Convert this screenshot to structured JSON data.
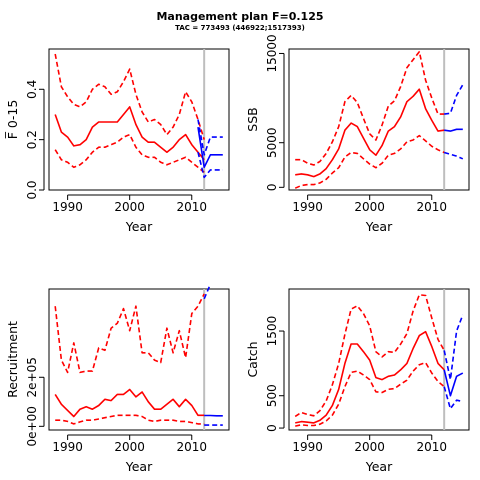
{
  "title": "Management plan F=0.125",
  "subtitle": "TAC = 773493 (446922;1517393)",
  "colors": {
    "historic": "#ff0000",
    "projection": "#0000ff",
    "current_year_line": "#bebebe",
    "axis": "#000000"
  },
  "chart_data": [
    {
      "type": "line",
      "panel": "top-left",
      "ylabel": "F̅ 0-15",
      "xlabel": "Year",
      "xlim": [
        1987,
        2016
      ],
      "ylim": [
        0,
        0.56
      ],
      "x_ticks": [
        1990,
        2000,
        2010
      ],
      "y_ticks": [
        0.0,
        0.2,
        0.4
      ],
      "y_tick_labels": [
        "0.0",
        "0.2",
        "0.4"
      ],
      "current_year": 2012,
      "series": [
        {
          "kind": "estimate",
          "style": "solid",
          "color": "#ff0000",
          "x": [
            1988,
            1989,
            1990,
            1991,
            1992,
            1993,
            1994,
            1995,
            1996,
            1997,
            1998,
            1999,
            2000,
            2001,
            2002,
            2003,
            2004,
            2005,
            2006,
            2007,
            2008,
            2009,
            2010,
            2011,
            2012
          ],
          "y": [
            0.3,
            0.23,
            0.21,
            0.175,
            0.18,
            0.2,
            0.25,
            0.27,
            0.27,
            0.27,
            0.27,
            0.3,
            0.33,
            0.26,
            0.21,
            0.19,
            0.19,
            0.17,
            0.15,
            0.17,
            0.2,
            0.22,
            0.18,
            0.15,
            0.12
          ]
        },
        {
          "kind": "upper",
          "style": "dashed",
          "color": "#ff0000",
          "x": [
            1988,
            1989,
            1990,
            1991,
            1992,
            1993,
            1994,
            1995,
            1996,
            1997,
            1998,
            1999,
            2000,
            2001,
            2002,
            2003,
            2004,
            2005,
            2006,
            2007,
            2008,
            2009,
            2010,
            2011,
            2012
          ],
          "y": [
            0.54,
            0.41,
            0.37,
            0.34,
            0.33,
            0.35,
            0.4,
            0.42,
            0.41,
            0.38,
            0.39,
            0.43,
            0.48,
            0.38,
            0.31,
            0.27,
            0.28,
            0.26,
            0.22,
            0.25,
            0.3,
            0.39,
            0.35,
            0.28,
            0.2
          ]
        },
        {
          "kind": "lower",
          "style": "dashed",
          "color": "#ff0000",
          "x": [
            1988,
            1989,
            1990,
            1991,
            1992,
            1993,
            1994,
            1995,
            1996,
            1997,
            1998,
            1999,
            2000,
            2001,
            2002,
            2003,
            2004,
            2005,
            2006,
            2007,
            2008,
            2009,
            2010,
            2011,
            2012
          ],
          "y": [
            0.16,
            0.12,
            0.11,
            0.09,
            0.1,
            0.12,
            0.15,
            0.17,
            0.17,
            0.18,
            0.19,
            0.21,
            0.22,
            0.17,
            0.14,
            0.13,
            0.13,
            0.11,
            0.1,
            0.11,
            0.12,
            0.13,
            0.11,
            0.09,
            0.07
          ]
        },
        {
          "kind": "projection",
          "style": "solid",
          "color": "#0000ff",
          "x": [
            2011,
            2012,
            2013,
            2014,
            2015
          ],
          "y": [
            0.25,
            0.09,
            0.14,
            0.14,
            0.14
          ]
        },
        {
          "kind": "projection-upper",
          "style": "dashed",
          "color": "#0000ff",
          "x": [
            2011,
            2012,
            2013,
            2014,
            2015
          ],
          "y": [
            0.28,
            0.14,
            0.21,
            0.21,
            0.21
          ]
        },
        {
          "kind": "projection-lower",
          "style": "dashed",
          "color": "#0000ff",
          "x": [
            2011,
            2012,
            2013,
            2014,
            2015
          ],
          "y": [
            0.15,
            0.05,
            0.08,
            0.08,
            0.08
          ]
        }
      ]
    },
    {
      "type": "line",
      "panel": "top-right",
      "ylabel": "SSB",
      "xlabel": "Year",
      "xlim": [
        1987,
        2016
      ],
      "ylim": [
        -300,
        15500
      ],
      "x_ticks": [
        1990,
        2000,
        2010
      ],
      "y_ticks": [
        0,
        5000,
        15000
      ],
      "y_tick_labels": [
        "0",
        "5000",
        "15000"
      ],
      "current_year": 2012,
      "series": [
        {
          "kind": "estimate",
          "style": "solid",
          "color": "#ff0000",
          "x": [
            1988,
            1989,
            1990,
            1991,
            1992,
            1993,
            1994,
            1995,
            1996,
            1997,
            1998,
            1999,
            2000,
            2001,
            2002,
            2003,
            2004,
            2005,
            2006,
            2007,
            2008,
            2009,
            2010,
            2011,
            2012
          ],
          "y": [
            1400,
            1500,
            1400,
            1200,
            1500,
            2100,
            3100,
            4300,
            6400,
            7200,
            6800,
            5500,
            4200,
            3600,
            4700,
            6300,
            6800,
            7900,
            9600,
            10200,
            11000,
            8800,
            7500,
            6300,
            6400
          ]
        },
        {
          "kind": "upper",
          "style": "dashed",
          "color": "#ff0000",
          "x": [
            1988,
            1989,
            1990,
            1991,
            1992,
            1993,
            1994,
            1995,
            1996,
            1997,
            1998,
            1999,
            2000,
            2001,
            2002,
            2003,
            2004,
            2005,
            2006,
            2007,
            2008,
            2009,
            2010,
            2011,
            2012
          ],
          "y": [
            3100,
            3100,
            2700,
            2500,
            2900,
            3800,
            5100,
            6800,
            9600,
            10300,
            9500,
            7700,
            6000,
            5300,
            7000,
            9100,
            9700,
            11300,
            13400,
            14300,
            15200,
            12000,
            10000,
            8200,
            8200
          ]
        },
        {
          "kind": "lower",
          "style": "dashed",
          "color": "#ff0000",
          "x": [
            1988,
            1989,
            1990,
            1991,
            1992,
            1993,
            1994,
            1995,
            1996,
            1997,
            1998,
            1999,
            2000,
            2001,
            2002,
            2003,
            2004,
            2005,
            2006,
            2007,
            2008,
            2009,
            2010,
            2011,
            2012
          ],
          "y": [
            -100,
            200,
            300,
            300,
            500,
            900,
            1600,
            2200,
            3400,
            3900,
            3800,
            3200,
            2600,
            2200,
            2700,
            3600,
            3800,
            4300,
            5100,
            5300,
            5800,
            5200,
            4600,
            4200,
            3900
          ]
        },
        {
          "kind": "projection",
          "style": "solid",
          "color": "#0000ff",
          "x": [
            2012,
            2013,
            2014,
            2015
          ],
          "y": [
            6400,
            6300,
            6500,
            6500
          ]
        },
        {
          "kind": "projection-upper",
          "style": "dashed",
          "color": "#0000ff",
          "x": [
            2012,
            2013,
            2014,
            2015
          ],
          "y": [
            8200,
            8300,
            10300,
            11500
          ]
        },
        {
          "kind": "projection-lower",
          "style": "dashed",
          "color": "#0000ff",
          "x": [
            2012,
            2013,
            2014,
            2015
          ],
          "y": [
            3900,
            3700,
            3500,
            3200
          ]
        }
      ]
    },
    {
      "type": "line",
      "panel": "bottom-left",
      "ylabel": "Recruitment",
      "xlabel": "Year",
      "xlim": [
        1987,
        2016
      ],
      "ylim": [
        -15000,
        560000
      ],
      "x_ticks": [
        1990,
        2000,
        2010
      ],
      "y_ticks": [
        0,
        200000
      ],
      "y_tick_labels": [
        "0e+00",
        "2e+05"
      ],
      "current_year": 2012,
      "series": [
        {
          "kind": "estimate",
          "style": "solid",
          "color": "#ff0000",
          "x": [
            1988,
            1989,
            1990,
            1991,
            1992,
            1993,
            1994,
            1995,
            1996,
            1997,
            1998,
            1999,
            2000,
            2001,
            2002,
            2003,
            2004,
            2005,
            2006,
            2007,
            2008,
            2009,
            2010,
            2011,
            2012
          ],
          "y": [
            130000,
            90000,
            65000,
            40000,
            70000,
            80000,
            70000,
            85000,
            110000,
            105000,
            130000,
            130000,
            150000,
            120000,
            140000,
            100000,
            70000,
            70000,
            90000,
            110000,
            80000,
            110000,
            85000,
            45000,
            45000
          ]
        },
        {
          "kind": "upper",
          "style": "dashed",
          "color": "#ff0000",
          "x": [
            1988,
            1989,
            1990,
            1991,
            1992,
            1993,
            1994,
            1995,
            1996,
            1997,
            1998,
            1999,
            2000,
            2001,
            2002,
            2003,
            2004,
            2005,
            2006,
            2007,
            2008,
            2009,
            2010,
            2011,
            2012
          ],
          "y": [
            490000,
            270000,
            220000,
            340000,
            220000,
            225000,
            225000,
            320000,
            310000,
            400000,
            420000,
            480000,
            390000,
            490000,
            300000,
            300000,
            270000,
            260000,
            400000,
            300000,
            390000,
            280000,
            460000,
            490000,
            540000
          ]
        },
        {
          "kind": "lower",
          "style": "dashed",
          "color": "#ff0000",
          "x": [
            1988,
            1989,
            1990,
            1991,
            1992,
            1993,
            1994,
            1995,
            1996,
            1997,
            1998,
            1999,
            2000,
            2001,
            2002,
            2003,
            2004,
            2005,
            2006,
            2007,
            2008,
            2009,
            2010,
            2011,
            2012
          ],
          "y": [
            25000,
            25000,
            20000,
            10000,
            18000,
            25000,
            25000,
            30000,
            35000,
            40000,
            45000,
            45000,
            45000,
            45000,
            40000,
            25000,
            20000,
            25000,
            25000,
            25000,
            20000,
            20000,
            15000,
            10000,
            10000
          ]
        },
        {
          "kind": "projection",
          "style": "solid",
          "color": "#0000ff",
          "x": [
            2012,
            2013,
            2014,
            2015
          ],
          "y": [
            44000,
            44000,
            43000,
            43000
          ]
        },
        {
          "kind": "projection-upper",
          "style": "dashed",
          "color": "#0000ff",
          "x": [
            2012,
            2013
          ],
          "y": [
            520000,
            580000
          ]
        },
        {
          "kind": "projection-lower",
          "style": "dashed",
          "color": "#0000ff",
          "x": [
            2012,
            2013,
            2014,
            2015
          ],
          "y": [
            5000,
            5000,
            5000,
            5000
          ]
        }
      ]
    },
    {
      "type": "line",
      "panel": "bottom-right",
      "ylabel": "Catch",
      "xlabel": "Year",
      "xlim": [
        1987,
        2016
      ],
      "ylim": [
        -30,
        2150
      ],
      "x_ticks": [
        1990,
        2000,
        2010
      ],
      "y_ticks": [
        0,
        500,
        1500
      ],
      "y_tick_labels": [
        "0",
        "500",
        "1500"
      ],
      "current_year": 2012,
      "series": [
        {
          "kind": "estimate",
          "style": "solid",
          "color": "#ff0000",
          "x": [
            1988,
            1989,
            1990,
            1991,
            1992,
            1993,
            1994,
            1995,
            1996,
            1997,
            1998,
            1999,
            2000,
            2001,
            2002,
            2003,
            2004,
            2005,
            2006,
            2007,
            2008,
            2009,
            2010,
            2011,
            2012
          ],
          "y": [
            80,
            100,
            90,
            80,
            120,
            200,
            350,
            600,
            1000,
            1300,
            1300,
            1180,
            1050,
            780,
            750,
            800,
            820,
            900,
            1000,
            1230,
            1430,
            1490,
            1260,
            1000,
            900
          ]
        },
        {
          "kind": "upper",
          "style": "dashed",
          "color": "#ff0000",
          "x": [
            1988,
            1989,
            1990,
            1991,
            1992,
            1993,
            1994,
            1995,
            1996,
            1997,
            1998,
            1999,
            2000,
            2001,
            2002,
            2003,
            2004,
            2005,
            2006,
            2007,
            2008,
            2009,
            2010,
            2011,
            2012
          ],
          "y": [
            180,
            240,
            210,
            190,
            270,
            420,
            670,
            1000,
            1450,
            1840,
            1890,
            1770,
            1580,
            1180,
            1100,
            1180,
            1170,
            1300,
            1460,
            1810,
            2060,
            2050,
            1700,
            1370,
            1200
          ]
        },
        {
          "kind": "lower",
          "style": "dashed",
          "color": "#ff0000",
          "x": [
            1988,
            1989,
            1990,
            1991,
            1992,
            1993,
            1994,
            1995,
            1996,
            1997,
            1998,
            1999,
            2000,
            2001,
            2002,
            2003,
            2004,
            2005,
            2006,
            2007,
            2008,
            2009,
            2010,
            2011,
            2012
          ],
          "y": [
            30,
            50,
            40,
            40,
            60,
            110,
            200,
            370,
            640,
            860,
            880,
            820,
            750,
            560,
            550,
            600,
            610,
            680,
            740,
            880,
            980,
            1010,
            850,
            720,
            640
          ]
        },
        {
          "kind": "projection",
          "style": "solid",
          "color": "#0000ff",
          "x": [
            2012,
            2013,
            2014,
            2015
          ],
          "y": [
            900,
            500,
            800,
            850
          ]
        },
        {
          "kind": "projection-upper",
          "style": "dashed",
          "color": "#0000ff",
          "x": [
            2012,
            2013,
            2014,
            2015
          ],
          "y": [
            1200,
            750,
            1500,
            1750
          ]
        },
        {
          "kind": "projection-lower",
          "style": "dashed",
          "color": "#0000ff",
          "x": [
            2012,
            2013,
            2014,
            2015
          ],
          "y": [
            640,
            300,
            430,
            410
          ]
        }
      ]
    }
  ]
}
